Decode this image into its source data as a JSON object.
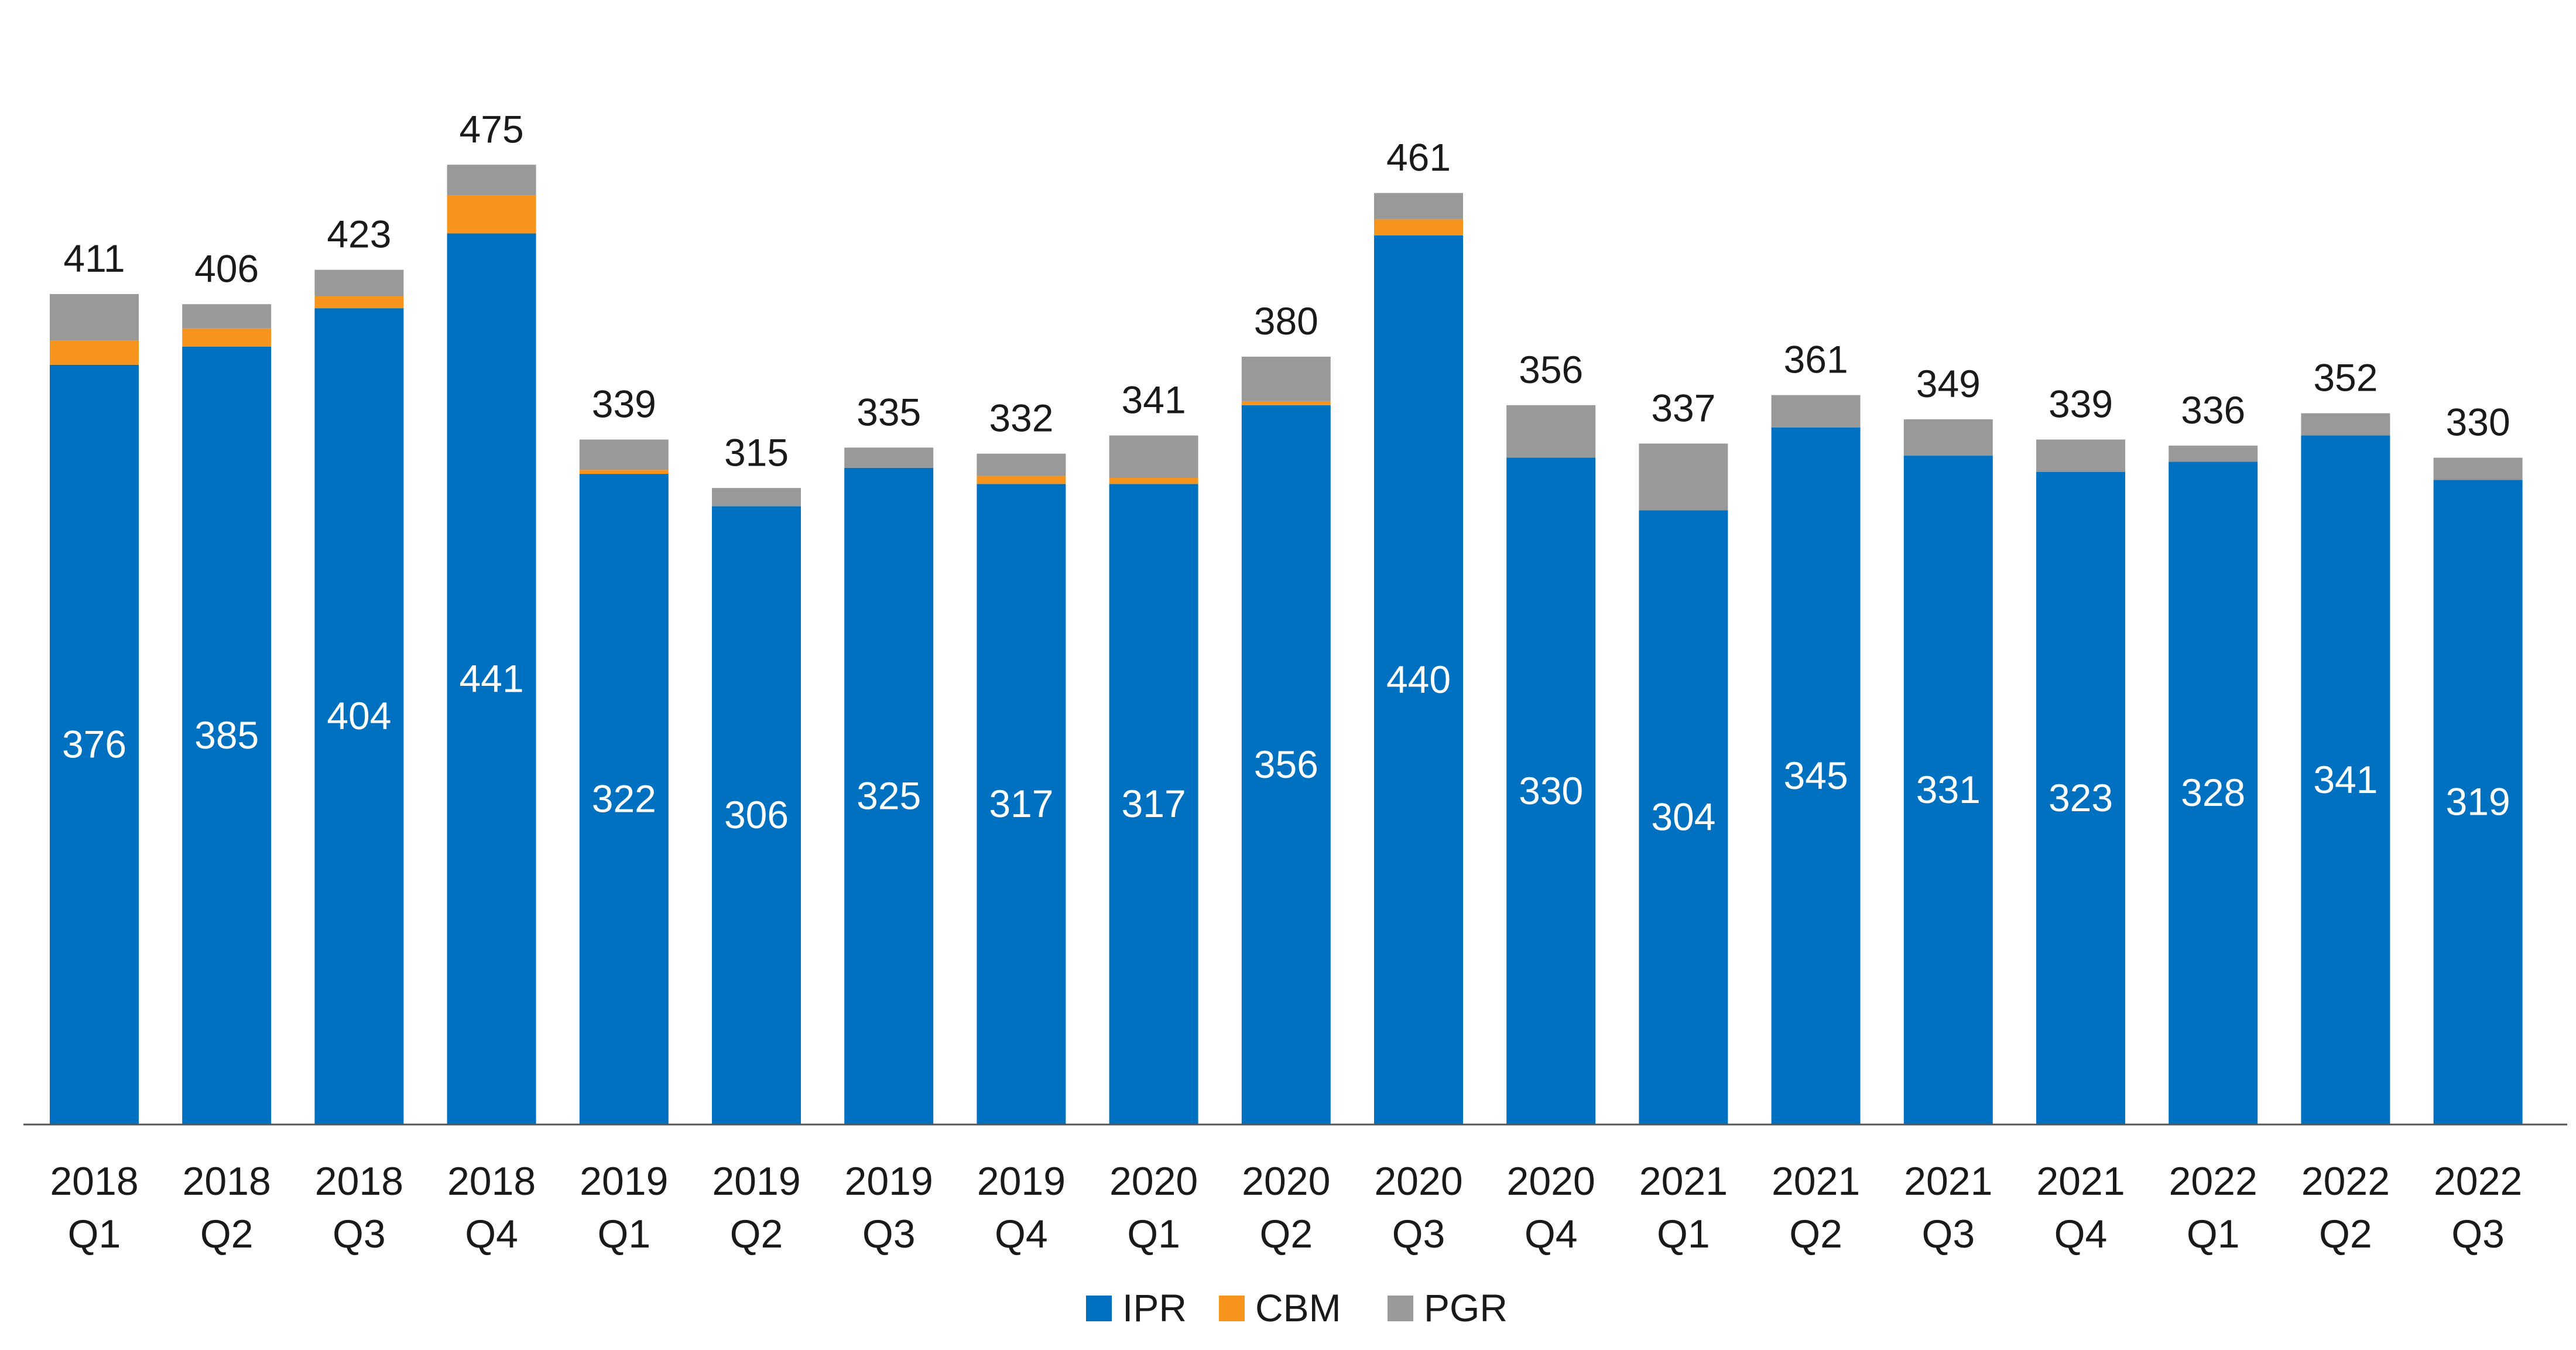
{
  "chart_data": {
    "type": "bar",
    "stacked": true,
    "title": "",
    "xlabel": "",
    "ylabel": "",
    "ylim": [
      0,
      500
    ],
    "grid": false,
    "legend_placement": "bottom-center",
    "categories": [
      [
        "2018",
        "Q1"
      ],
      [
        "2018",
        "Q2"
      ],
      [
        "2018",
        "Q3"
      ],
      [
        "2018",
        "Q4"
      ],
      [
        "2019",
        "Q1"
      ],
      [
        "2019",
        "Q2"
      ],
      [
        "2019",
        "Q3"
      ],
      [
        "2019",
        "Q4"
      ],
      [
        "2020",
        "Q1"
      ],
      [
        "2020",
        "Q2"
      ],
      [
        "2020",
        "Q3"
      ],
      [
        "2020",
        "Q4"
      ],
      [
        "2021",
        "Q1"
      ],
      [
        "2021",
        "Q2"
      ],
      [
        "2021",
        "Q3"
      ],
      [
        "2021",
        "Q4"
      ],
      [
        "2022",
        "Q1"
      ],
      [
        "2022",
        "Q2"
      ],
      [
        "2022",
        "Q3"
      ]
    ],
    "series": [
      {
        "name": "IPR",
        "color": "#0070c0",
        "values": [
          376,
          385,
          404,
          441,
          322,
          306,
          325,
          317,
          317,
          356,
          440,
          330,
          304,
          345,
          331,
          323,
          328,
          341,
          319
        ]
      },
      {
        "name": "CBM",
        "color": "#f7941d",
        "values": [
          12,
          9,
          6,
          19,
          2,
          0,
          0,
          4,
          3,
          2,
          8,
          0,
          0,
          0,
          0,
          0,
          0,
          0,
          0
        ]
      },
      {
        "name": "PGR",
        "color": "#999999",
        "values": [
          23,
          12,
          13,
          15,
          15,
          9,
          10,
          11,
          21,
          22,
          13,
          26,
          33,
          16,
          18,
          16,
          8,
          11,
          11
        ]
      }
    ],
    "totals": [
      411,
      406,
      423,
      475,
      339,
      315,
      335,
      332,
      341,
      380,
      461,
      356,
      337,
      361,
      349,
      339,
      336,
      352,
      330
    ]
  }
}
